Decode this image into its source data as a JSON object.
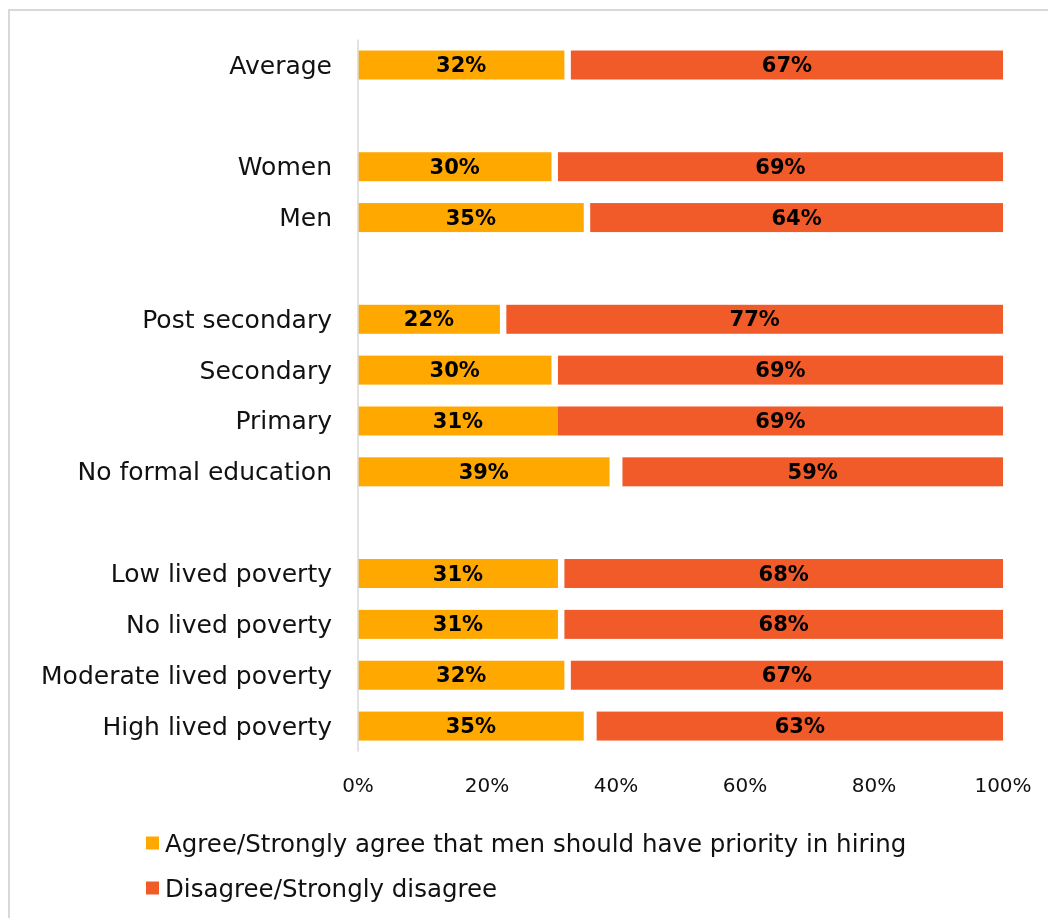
{
  "chart_data": {
    "type": "bar",
    "orientation": "horizontal",
    "categories": [
      "Average",
      null,
      "Women",
      "Men",
      null,
      "Post secondary",
      "Secondary",
      "Primary",
      "No formal education",
      null,
      "Low lived poverty",
      "No lived poverty",
      "Moderate lived poverty",
      "High lived poverty"
    ],
    "series": [
      {
        "name": "Agree/Strongly agree that men should have priority in hiring",
        "color": "#ffa800",
        "values": [
          32,
          null,
          30,
          35,
          null,
          22,
          30,
          31,
          39,
          null,
          31,
          31,
          32,
          35
        ],
        "base": [
          0,
          null,
          0,
          0,
          null,
          0,
          0,
          0,
          0,
          null,
          0,
          0,
          0,
          0
        ],
        "value_labels": [
          "32%",
          null,
          "30%",
          "35%",
          null,
          "22%",
          "30%",
          "31%",
          "39%",
          null,
          "31%",
          "31%",
          "32%",
          "35%"
        ]
      },
      {
        "name": "Disagree/Strongly disagree",
        "color": "#f15a29",
        "values": [
          67,
          null,
          69,
          64,
          null,
          77,
          69,
          69,
          59,
          null,
          68,
          68,
          67,
          63
        ],
        "base": [
          33,
          null,
          31,
          36,
          null,
          23,
          31,
          31,
          41,
          null,
          32,
          32,
          33,
          37
        ],
        "value_labels": [
          "67%",
          null,
          "69%",
          "64%",
          null,
          "77%",
          "69%",
          "69%",
          "59%",
          null,
          "68%",
          "68%",
          "67%",
          "63%"
        ]
      }
    ],
    "xlim": [
      0,
      100
    ],
    "xticks": [
      {
        "value": 0,
        "label": "0%"
      },
      {
        "value": 20,
        "label": "20%"
      },
      {
        "value": 40,
        "label": "40%"
      },
      {
        "value": 60,
        "label": "60%"
      },
      {
        "value": 80,
        "label": "80%"
      },
      {
        "value": 100,
        "label": "100%"
      }
    ],
    "legend": "bottom"
  }
}
